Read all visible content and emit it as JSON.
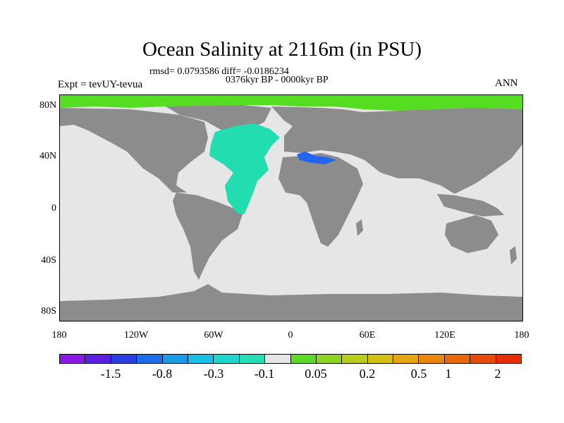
{
  "title": "Ocean Salinity at 2116m (in PSU)",
  "stats": "rmsd= 0.0793586 diff= -0.0186234",
  "period": "0376kyr BP - 0000kyr BP",
  "experiment": "Expt = tevUY-tevua",
  "season": "ANN",
  "map": {
    "y_ticks": [
      "80N",
      "40N",
      "0",
      "40S",
      "80S"
    ],
    "x_ticks": [
      "180",
      "120W",
      "60W",
      "0",
      "60E",
      "120E",
      "180"
    ],
    "colors": {
      "land": "#8c8c8c",
      "ocean_neutral": "#e6e6e6",
      "arctic_positive": "#55dd22",
      "atlantic_negative": "#22ddb0",
      "mediterranean_negative": "#2266ee"
    }
  },
  "legend": {
    "labels": [
      "-1.5",
      "-0.8",
      "-0.3",
      "-0.1",
      "0.05",
      "0.2",
      "0.5",
      "1",
      "2"
    ],
    "colors": [
      "#8c1ae6",
      "#5a1fe0",
      "#2a3fe0",
      "#1e6de8",
      "#1a9be8",
      "#18c0e6",
      "#1fd6cf",
      "#26deb2",
      "#e6e6e6",
      "#5ed82a",
      "#8fd323",
      "#b8cc1b",
      "#d6bf14",
      "#e4a50f",
      "#e8870c",
      "#e8690a",
      "#e84a08",
      "#e82c06"
    ]
  }
}
